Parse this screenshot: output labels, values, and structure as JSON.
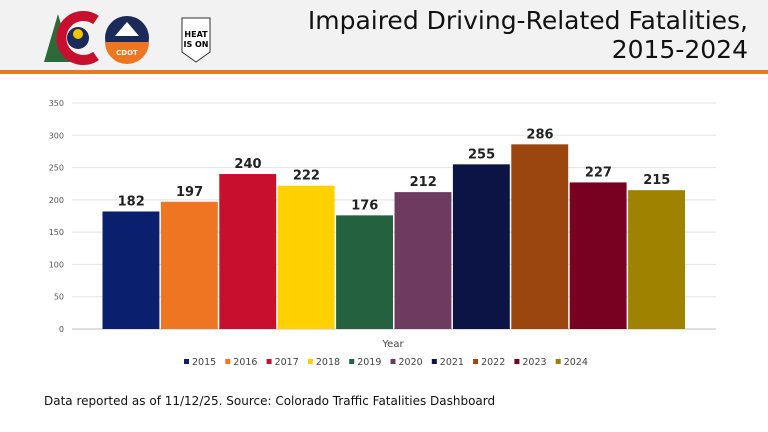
{
  "header": {
    "title_line1": "Impaired Driving-Related Fatalities,",
    "title_line2": "2015-2024",
    "logos": [
      "Colorado state logo",
      "CDOT",
      "THE HEAT IS ON"
    ]
  },
  "chart_data": {
    "type": "bar",
    "title": "",
    "xlabel": "Year",
    "ylabel": "",
    "ylim": [
      0,
      350
    ],
    "yticks": [
      0,
      50,
      100,
      150,
      200,
      250,
      300,
      350
    ],
    "grid": true,
    "legend": "bottom",
    "categories": [
      "2015",
      "2016",
      "2017",
      "2018",
      "2019",
      "2020",
      "2021",
      "2022",
      "2023",
      "2024"
    ],
    "values": [
      182,
      197,
      240,
      222,
      176,
      212,
      255,
      286,
      227,
      215
    ],
    "colors": [
      "#0b1f6f",
      "#ee7623",
      "#c8102e",
      "#ffd100",
      "#24623f",
      "#6d3b5f",
      "#0c1446",
      "#9b450f",
      "#780021",
      "#9f8200"
    ]
  },
  "footer": {
    "note": "Data reported as of 11/12/25. Source: Colorado Traffic Fatalities Dashboard"
  }
}
